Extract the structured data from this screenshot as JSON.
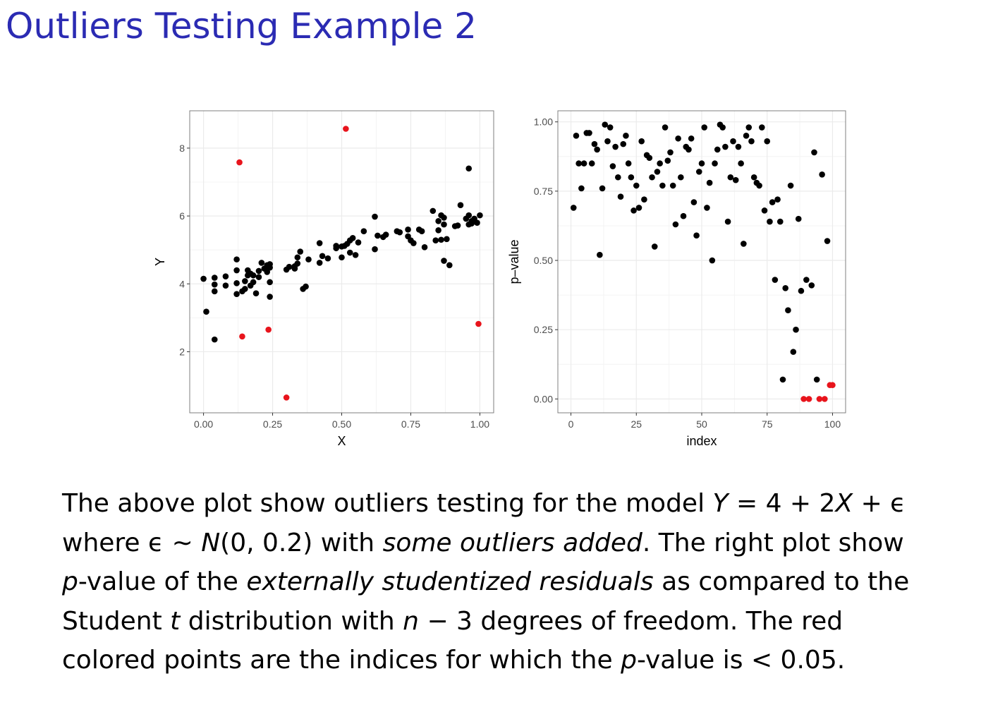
{
  "slide": {
    "title": "Outliers Testing Example 2"
  },
  "colors": {
    "title": "#2b2bb3",
    "point": "#000000",
    "outlier": "#e8141c",
    "grid": "#ebebeb",
    "panel_border": "#7f7f7f"
  },
  "chart_data": [
    {
      "type": "scatter",
      "title": "",
      "xlabel": "X",
      "ylabel": "Y",
      "xlim": [
        -0.05,
        1.05
      ],
      "ylim": [
        0.2,
        9.1
      ],
      "xticks": [
        {
          "v": 0,
          "label": "0.00"
        },
        {
          "v": 0.25,
          "label": "0.25"
        },
        {
          "v": 0.5,
          "label": "0.50"
        },
        {
          "v": 0.75,
          "label": "0.75"
        },
        {
          "v": 1,
          "label": "1.00"
        }
      ],
      "yticks": [
        {
          "v": 2,
          "label": "2"
        },
        {
          "v": 4,
          "label": "4"
        },
        {
          "v": 6,
          "label": "6"
        },
        {
          "v": 8,
          "label": "8"
        }
      ],
      "grid": true,
      "series": [
        {
          "color": "#000000",
          "points": [
            [
              0.0,
              4.15
            ],
            [
              0.01,
              3.18
            ],
            [
              0.04,
              2.36
            ],
            [
              0.04,
              3.98
            ],
            [
              0.04,
              4.18
            ],
            [
              0.04,
              3.78
            ],
            [
              0.08,
              3.95
            ],
            [
              0.08,
              4.22
            ],
            [
              0.12,
              3.7
            ],
            [
              0.12,
              4.02
            ],
            [
              0.12,
              4.4
            ],
            [
              0.12,
              4.72
            ],
            [
              0.14,
              3.78
            ],
            [
              0.15,
              4.08
            ],
            [
              0.15,
              3.85
            ],
            [
              0.16,
              4.25
            ],
            [
              0.16,
              4.4
            ],
            [
              0.17,
              4.3
            ],
            [
              0.17,
              3.95
            ],
            [
              0.18,
              4.05
            ],
            [
              0.18,
              4.25
            ],
            [
              0.19,
              3.72
            ],
            [
              0.2,
              4.2
            ],
            [
              0.2,
              4.38
            ],
            [
              0.21,
              4.62
            ],
            [
              0.22,
              4.45
            ],
            [
              0.23,
              4.55
            ],
            [
              0.23,
              4.35
            ],
            [
              0.24,
              4.48
            ],
            [
              0.24,
              4.58
            ],
            [
              0.24,
              4.05
            ],
            [
              0.24,
              3.62
            ],
            [
              0.3,
              4.42
            ],
            [
              0.31,
              4.5
            ],
            [
              0.33,
              4.52
            ],
            [
              0.33,
              4.45
            ],
            [
              0.34,
              4.6
            ],
            [
              0.34,
              4.78
            ],
            [
              0.35,
              4.95
            ],
            [
              0.36,
              3.85
            ],
            [
              0.37,
              3.92
            ],
            [
              0.38,
              4.72
            ],
            [
              0.42,
              4.62
            ],
            [
              0.42,
              5.2
            ],
            [
              0.43,
              4.82
            ],
            [
              0.45,
              4.75
            ],
            [
              0.48,
              5.12
            ],
            [
              0.48,
              5.05
            ],
            [
              0.5,
              4.78
            ],
            [
              0.5,
              5.1
            ],
            [
              0.51,
              5.12
            ],
            [
              0.52,
              5.18
            ],
            [
              0.53,
              4.92
            ],
            [
              0.53,
              5.28
            ],
            [
              0.54,
              5.35
            ],
            [
              0.55,
              4.85
            ],
            [
              0.56,
              5.22
            ],
            [
              0.58,
              5.55
            ],
            [
              0.62,
              5.02
            ],
            [
              0.62,
              5.98
            ],
            [
              0.63,
              5.42
            ],
            [
              0.65,
              5.38
            ],
            [
              0.66,
              5.45
            ],
            [
              0.7,
              5.55
            ],
            [
              0.71,
              5.52
            ],
            [
              0.74,
              5.4
            ],
            [
              0.74,
              5.6
            ],
            [
              0.75,
              5.28
            ],
            [
              0.76,
              5.2
            ],
            [
              0.78,
              5.6
            ],
            [
              0.79,
              5.55
            ],
            [
              0.8,
              5.08
            ],
            [
              0.83,
              6.15
            ],
            [
              0.84,
              5.28
            ],
            [
              0.85,
              5.58
            ],
            [
              0.85,
              5.85
            ],
            [
              0.86,
              5.3
            ],
            [
              0.86,
              6.02
            ],
            [
              0.87,
              5.95
            ],
            [
              0.87,
              5.75
            ],
            [
              0.88,
              5.32
            ],
            [
              0.87,
              4.68
            ],
            [
              0.89,
              4.55
            ],
            [
              0.91,
              5.7
            ],
            [
              0.92,
              5.72
            ],
            [
              0.93,
              6.32
            ],
            [
              0.95,
              5.92
            ],
            [
              0.96,
              5.75
            ],
            [
              0.96,
              7.4
            ],
            [
              0.96,
              6.02
            ],
            [
              0.97,
              5.78
            ],
            [
              0.97,
              5.85
            ],
            [
              0.98,
              5.92
            ],
            [
              0.99,
              5.8
            ],
            [
              1.0,
              6.02
            ]
          ]
        },
        {
          "color": "#e8141c",
          "points": [
            [
              0.13,
              7.58
            ],
            [
              0.14,
              2.45
            ],
            [
              0.235,
              2.65
            ],
            [
              0.3,
              0.65
            ],
            [
              0.515,
              8.57
            ],
            [
              0.995,
              2.82
            ]
          ]
        }
      ]
    },
    {
      "type": "scatter",
      "title": "",
      "xlabel": "index",
      "ylabel": "p–value",
      "xlim": [
        -5,
        105
      ],
      "ylim": [
        -0.05,
        1.04
      ],
      "xticks": [
        {
          "v": 0,
          "label": "0"
        },
        {
          "v": 25,
          "label": "25"
        },
        {
          "v": 50,
          "label": "50"
        },
        {
          "v": 75,
          "label": "75"
        },
        {
          "v": 100,
          "label": "100"
        }
      ],
      "yticks": [
        {
          "v": 0,
          "label": "0.00"
        },
        {
          "v": 0.25,
          "label": "0.25"
        },
        {
          "v": 0.5,
          "label": "0.50"
        },
        {
          "v": 0.75,
          "label": "0.75"
        },
        {
          "v": 1,
          "label": "1.00"
        }
      ],
      "grid": true,
      "series": [
        {
          "color": "#000000",
          "points": [
            [
              1,
              0.69
            ],
            [
              2,
              0.95
            ],
            [
              3,
              0.85
            ],
            [
              4,
              0.76
            ],
            [
              5,
              0.85
            ],
            [
              6,
              0.96
            ],
            [
              7,
              0.96
            ],
            [
              8,
              0.85
            ],
            [
              9,
              0.92
            ],
            [
              10,
              0.9
            ],
            [
              11,
              0.52
            ],
            [
              12,
              0.76
            ],
            [
              13,
              0.99
            ],
            [
              14,
              0.93
            ],
            [
              15,
              0.98
            ],
            [
              16,
              0.84
            ],
            [
              17,
              0.91
            ],
            [
              18,
              0.8
            ],
            [
              19,
              0.73
            ],
            [
              20,
              0.92
            ],
            [
              21,
              0.95
            ],
            [
              22,
              0.85
            ],
            [
              23,
              0.8
            ],
            [
              24,
              0.68
            ],
            [
              25,
              0.77
            ],
            [
              26,
              0.69
            ],
            [
              27,
              0.93
            ],
            [
              28,
              0.72
            ],
            [
              29,
              0.88
            ],
            [
              30,
              0.87
            ],
            [
              31,
              0.8
            ],
            [
              32,
              0.55
            ],
            [
              33,
              0.82
            ],
            [
              34,
              0.85
            ],
            [
              35,
              0.77
            ],
            [
              36,
              0.98
            ],
            [
              37,
              0.86
            ],
            [
              38,
              0.89
            ],
            [
              39,
              0.77
            ],
            [
              40,
              0.63
            ],
            [
              41,
              0.94
            ],
            [
              42,
              0.8
            ],
            [
              43,
              0.66
            ],
            [
              44,
              0.91
            ],
            [
              45,
              0.9
            ],
            [
              46,
              0.94
            ],
            [
              47,
              0.71
            ],
            [
              48,
              0.59
            ],
            [
              49,
              0.82
            ],
            [
              50,
              0.85
            ],
            [
              51,
              0.98
            ],
            [
              52,
              0.69
            ],
            [
              53,
              0.78
            ],
            [
              54,
              0.5
            ],
            [
              55,
              0.85
            ],
            [
              56,
              0.9
            ],
            [
              57,
              0.99
            ],
            [
              58,
              0.98
            ],
            [
              59,
              0.91
            ],
            [
              60,
              0.64
            ],
            [
              61,
              0.8
            ],
            [
              62,
              0.93
            ],
            [
              63,
              0.79
            ],
            [
              64,
              0.91
            ],
            [
              65,
              0.85
            ],
            [
              66,
              0.56
            ],
            [
              67,
              0.95
            ],
            [
              68,
              0.98
            ],
            [
              69,
              0.93
            ],
            [
              70,
              0.8
            ],
            [
              71,
              0.78
            ],
            [
              72,
              0.77
            ],
            [
              73,
              0.98
            ],
            [
              74,
              0.68
            ],
            [
              75,
              0.93
            ],
            [
              76,
              0.64
            ],
            [
              77,
              0.71
            ],
            [
              78,
              0.43
            ],
            [
              79,
              0.72
            ],
            [
              80,
              0.64
            ],
            [
              81,
              0.07
            ],
            [
              82,
              0.4
            ],
            [
              83,
              0.32
            ],
            [
              84,
              0.77
            ],
            [
              85,
              0.17
            ],
            [
              86,
              0.25
            ],
            [
              87,
              0.65
            ],
            [
              88,
              0.39
            ],
            [
              90,
              0.43
            ],
            [
              92,
              0.41
            ],
            [
              93,
              0.89
            ],
            [
              94,
              0.07
            ],
            [
              96,
              0.81
            ],
            [
              98,
              0.57
            ]
          ]
        },
        {
          "color": "#e8141c",
          "points": [
            [
              89,
              0.0
            ],
            [
              91,
              0.0
            ],
            [
              95,
              0.0
            ],
            [
              97,
              0.0
            ],
            [
              99,
              0.05
            ],
            [
              100,
              0.05
            ]
          ]
        }
      ]
    }
  ],
  "caption": {
    "lines": [
      [
        {
          "t": "The above plot show outliers testing for the model "
        },
        {
          "t": "Y",
          "i": true
        },
        {
          "t": " = 4 + 2"
        },
        {
          "t": "X",
          "i": true
        },
        {
          "t": " + ϵ"
        }
      ],
      [
        {
          "t": "where ϵ ∼ "
        },
        {
          "t": "N",
          "i": true
        },
        {
          "t": "(0, 0.2) with "
        },
        {
          "t": "some outliers added",
          "i": true
        },
        {
          "t": ". The right plot show"
        }
      ],
      [
        {
          "t": "p",
          "i": true
        },
        {
          "t": "-value of the "
        },
        {
          "t": "externally studentized residuals",
          "i": true
        },
        {
          "t": " as compared to the"
        }
      ],
      [
        {
          "t": "Student "
        },
        {
          "t": "t",
          "i": true
        },
        {
          "t": " distribution with "
        },
        {
          "t": "n",
          "i": true
        },
        {
          "t": " − 3 degrees of freedom. The red"
        }
      ],
      [
        {
          "t": "colored points are the indices for which the "
        },
        {
          "t": "p",
          "i": true
        },
        {
          "t": "-value is < 0.05."
        }
      ]
    ]
  }
}
